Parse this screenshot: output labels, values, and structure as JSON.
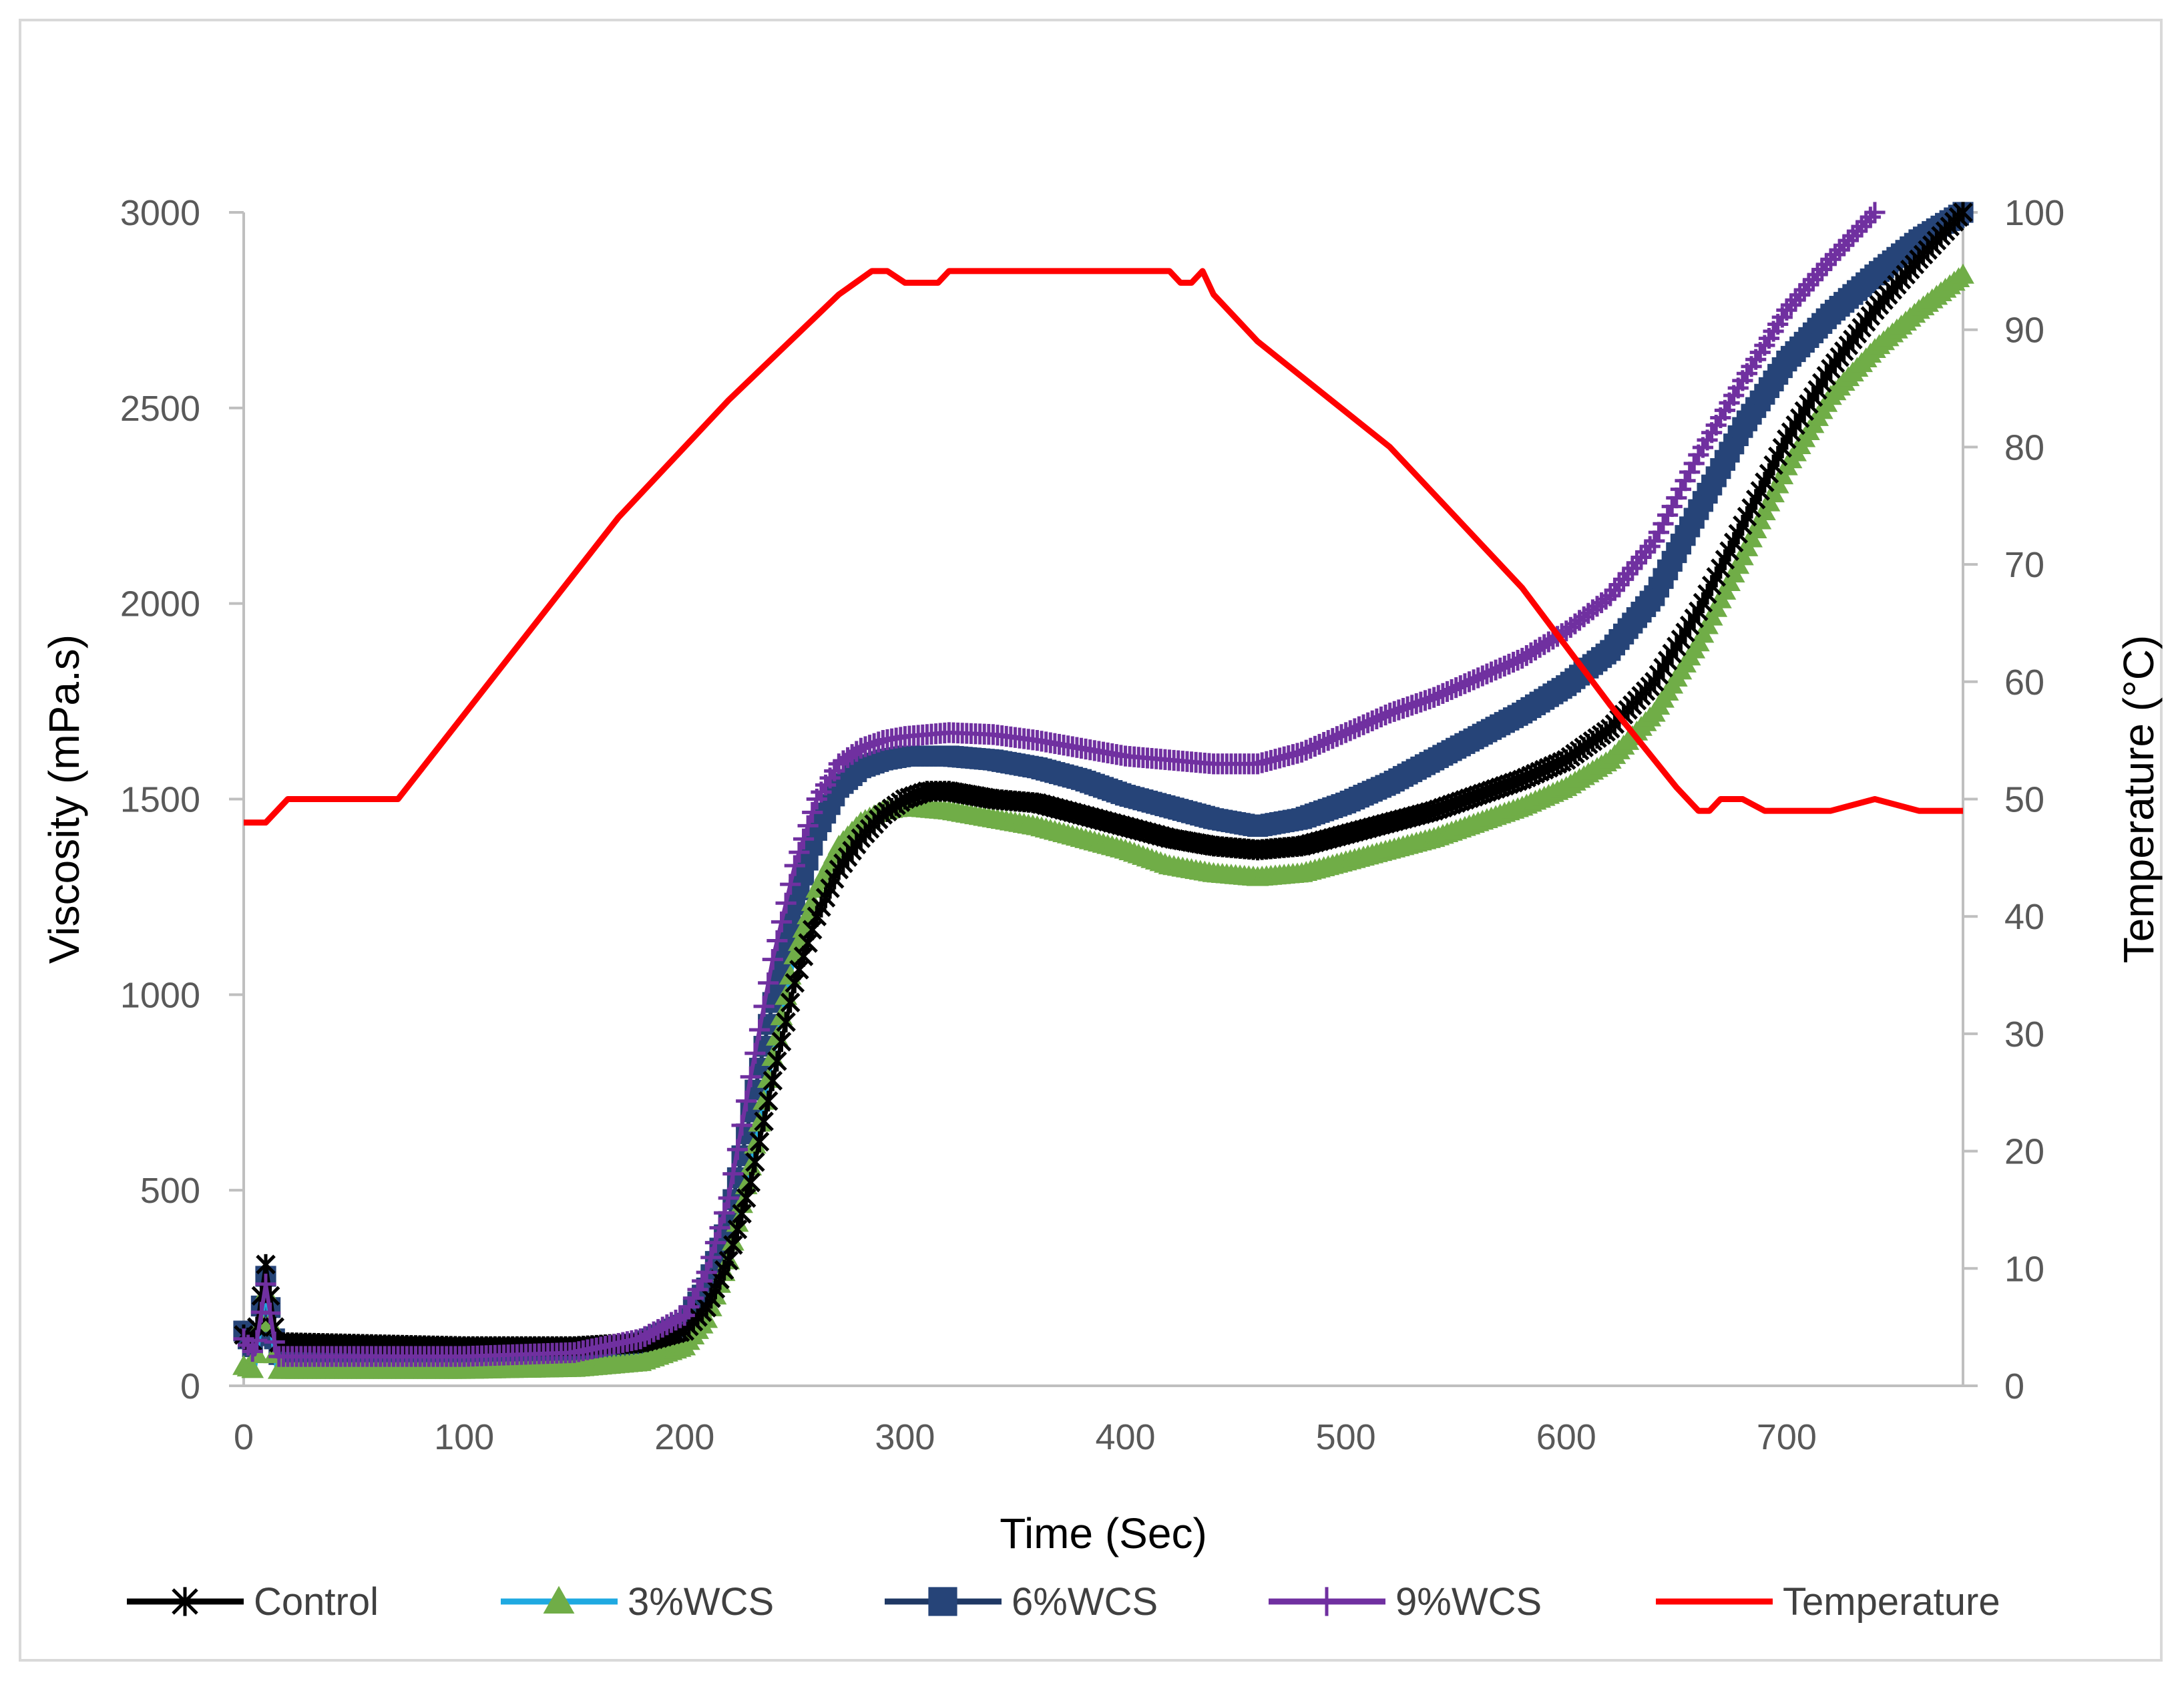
{
  "chart_data": {
    "type": "line",
    "title": "",
    "xlabel": "Time (Sec)",
    "ylabel": "Viscosity (mPa.s)",
    "y2label": "Temperature (°C)",
    "xlim": [
      0,
      780
    ],
    "ylim": [
      0,
      3000
    ],
    "y2lim": [
      0,
      100
    ],
    "xticks": [
      "0",
      "100",
      "200",
      "300",
      "400",
      "500",
      "600",
      "700"
    ],
    "yticks": [
      "0",
      "500",
      "1000",
      "1500",
      "2000",
      "2500",
      "3000"
    ],
    "y2ticks": [
      "0",
      "10",
      "20",
      "30",
      "40",
      "50",
      "60",
      "70",
      "80",
      "90",
      "100"
    ],
    "grid": false,
    "legend_position": "bottom",
    "series": [
      {
        "name": "Control",
        "axis": "left",
        "color": "#000000",
        "marker": "asterisk",
        "x": [
          0,
          5,
          10,
          15,
          20,
          60,
          100,
          150,
          180,
          200,
          210,
          220,
          230,
          240,
          250,
          260,
          270,
          280,
          290,
          300,
          310,
          320,
          340,
          360,
          380,
          400,
          420,
          440,
          460,
          480,
          500,
          520,
          540,
          560,
          580,
          600,
          620,
          640,
          660,
          680,
          700,
          720,
          740,
          760,
          780
        ],
        "y": [
          130,
          110,
          310,
          110,
          110,
          105,
          100,
          100,
          110,
          140,
          200,
          320,
          520,
          780,
          1030,
          1200,
          1320,
          1400,
          1460,
          1500,
          1520,
          1520,
          1500,
          1490,
          1460,
          1430,
          1400,
          1380,
          1370,
          1380,
          1410,
          1440,
          1470,
          1510,
          1550,
          1600,
          1680,
          1800,
          1980,
          2200,
          2420,
          2600,
          2750,
          2880,
          3000
        ]
      },
      {
        "name": "3%WCS",
        "axis": "left",
        "color": "#1fa9e1",
        "marker": "triangle",
        "x": [
          0,
          5,
          10,
          15,
          20,
          60,
          100,
          150,
          180,
          200,
          210,
          220,
          230,
          240,
          250,
          260,
          270,
          280,
          290,
          300,
          320,
          340,
          360,
          380,
          400,
          420,
          440,
          460,
          480,
          500,
          520,
          540,
          560,
          580,
          600,
          620,
          640,
          660,
          680,
          700,
          720,
          740,
          760,
          780
        ],
        "y": [
          50,
          40,
          240,
          40,
          40,
          40,
          40,
          45,
          60,
          100,
          170,
          320,
          560,
          840,
          1100,
          1270,
          1380,
          1440,
          1470,
          1480,
          1470,
          1450,
          1430,
          1400,
          1370,
          1330,
          1310,
          1300,
          1310,
          1340,
          1370,
          1400,
          1440,
          1480,
          1530,
          1600,
          1720,
          1900,
          2120,
          2350,
          2530,
          2650,
          2750,
          2840
        ]
      },
      {
        "name": "6%WCS",
        "axis": "left",
        "color": "#1f3864",
        "marker": "square",
        "x": [
          0,
          5,
          10,
          15,
          20,
          60,
          100,
          150,
          180,
          200,
          210,
          220,
          230,
          240,
          250,
          260,
          270,
          280,
          290,
          300,
          320,
          340,
          360,
          380,
          400,
          420,
          440,
          460,
          480,
          500,
          520,
          540,
          560,
          580,
          600,
          620,
          640,
          660,
          680,
          700,
          720,
          740,
          760,
          780
        ],
        "y": [
          140,
          90,
          280,
          80,
          80,
          78,
          78,
          85,
          110,
          160,
          250,
          420,
          700,
          980,
          1230,
          1420,
          1530,
          1580,
          1600,
          1610,
          1610,
          1600,
          1580,
          1550,
          1510,
          1480,
          1450,
          1430,
          1450,
          1490,
          1540,
          1600,
          1660,
          1720,
          1790,
          1880,
          2020,
          2240,
          2450,
          2620,
          2740,
          2840,
          2930,
          3000
        ]
      },
      {
        "name": "9%WCS",
        "axis": "left",
        "color": "#7030a0",
        "marker": "plus",
        "x": [
          0,
          5,
          10,
          15,
          20,
          60,
          100,
          150,
          180,
          200,
          210,
          220,
          230,
          240,
          250,
          260,
          270,
          280,
          290,
          300,
          320,
          340,
          360,
          380,
          400,
          420,
          440,
          460,
          480,
          500,
          520,
          540,
          560,
          580,
          600,
          620,
          640,
          660,
          680,
          700,
          720,
          740
        ],
        "y": [
          120,
          80,
          260,
          75,
          75,
          75,
          75,
          85,
          120,
          180,
          290,
          480,
          790,
          1090,
          1330,
          1500,
          1590,
          1630,
          1650,
          1660,
          1670,
          1665,
          1650,
          1630,
          1610,
          1600,
          1590,
          1590,
          1620,
          1670,
          1720,
          1760,
          1810,
          1860,
          1930,
          2020,
          2160,
          2380,
          2570,
          2750,
          2880,
          3000
        ]
      },
      {
        "name": "Temperature",
        "axis": "right",
        "color": "#ff0000",
        "marker": "none",
        "x": [
          0,
          10,
          20,
          70,
          120,
          170,
          220,
          270,
          285,
          292,
          300,
          315,
          320,
          420,
          425,
          430,
          435,
          440,
          450,
          460,
          520,
          580,
          620,
          650,
          660,
          665,
          670,
          680,
          690,
          700,
          720,
          740,
          760,
          780
        ],
        "y": [
          48,
          48,
          50,
          50,
          62,
          74,
          84,
          93,
          95,
          95,
          94,
          94,
          95,
          95,
          94,
          94,
          95,
          93,
          91,
          89,
          80,
          68,
          58,
          51,
          49,
          49,
          50,
          50,
          49,
          49,
          49,
          50,
          49,
          49
        ]
      }
    ]
  }
}
